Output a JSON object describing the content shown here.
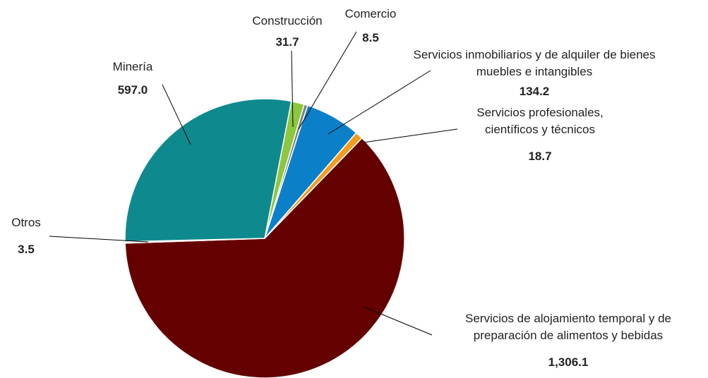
{
  "chart_data": {
    "type": "pie",
    "categories": [
      "Construcción",
      "Comercio",
      "Servicios inmobiliarios y de alquiler de bienes muebles e intangibles",
      "Servicios profesionales, científicos y técnicos",
      "Servicios de alojamiento temporal y de preparación de alimentos y bebidas",
      "Otros",
      "Minería"
    ],
    "values": [
      31.7,
      8.5,
      134.2,
      18.7,
      1306.1,
      3.5,
      597.0
    ],
    "value_labels": [
      "31.7",
      "8.5",
      "134.2",
      "18.7",
      "1,306.1",
      "3.5",
      "597.0"
    ],
    "colors": [
      "#8dc63f",
      "#7f7f7f",
      "#0b80c8",
      "#f39c1e",
      "#650000",
      "#bfbfbf",
      "#0e8a8f"
    ]
  }
}
